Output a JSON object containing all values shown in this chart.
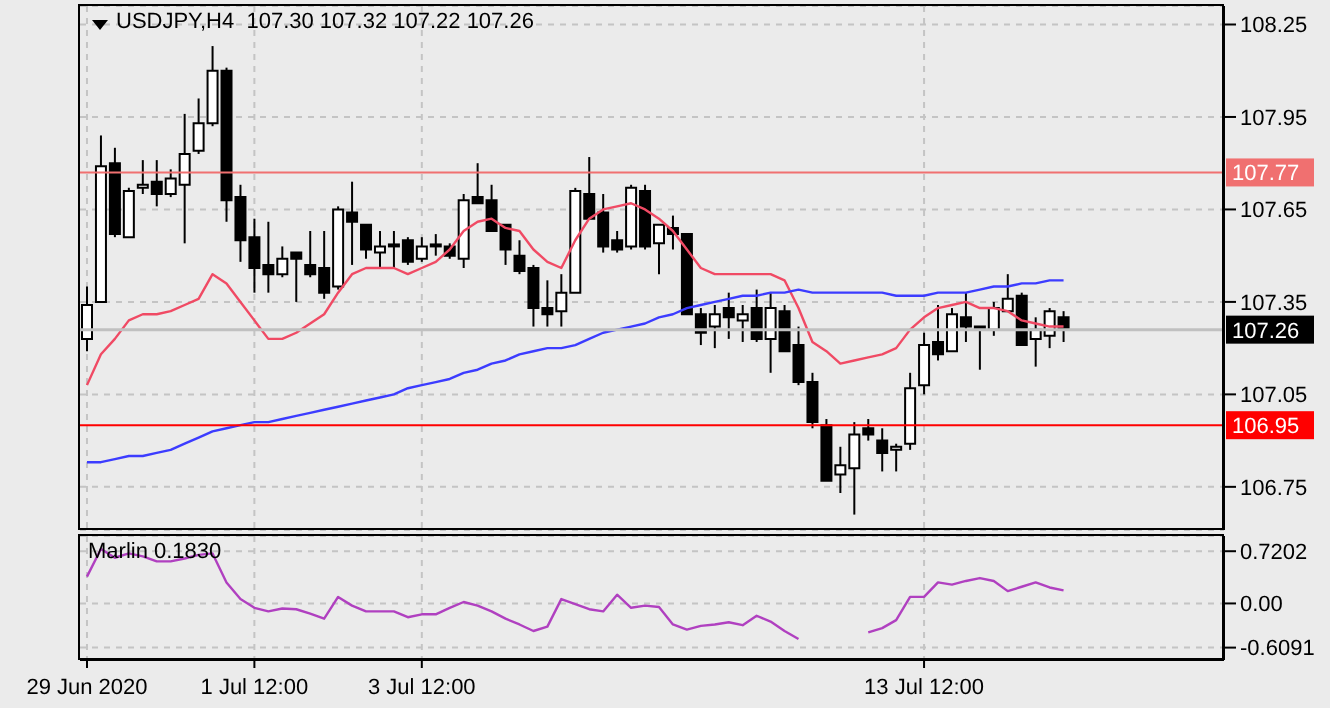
{
  "chart_data": [
    {
      "type": "candlestick",
      "title": "USDJPY,H4  107.30 107.32 107.22 107.26",
      "categories": [
        null,
        null,
        null,
        null,
        null,
        null,
        null,
        null,
        null,
        null,
        null,
        null,
        null,
        null,
        null,
        null,
        null,
        null,
        null,
        null,
        null,
        null,
        null,
        null,
        null,
        null,
        null,
        null,
        null,
        null,
        null,
        null,
        null,
        null,
        null,
        null,
        null,
        null,
        null,
        null,
        null,
        null,
        null,
        null,
        null,
        null,
        null,
        null,
        null,
        null,
        null,
        null,
        null,
        null,
        null,
        null,
        null,
        null,
        null,
        null,
        null,
        null,
        null,
        null,
        null,
        null,
        null,
        null,
        null,
        null,
        null,
        null,
        null,
        null,
        null,
        null,
        null,
        null,
        null,
        null,
        null,
        null
      ],
      "ohlc": [
        [
          107.23,
          107.4,
          107.19,
          107.34
        ],
        [
          107.35,
          107.89,
          107.35,
          107.79
        ],
        [
          107.8,
          107.85,
          107.56,
          107.57
        ],
        [
          107.56,
          107.72,
          107.56,
          107.71
        ],
        [
          107.72,
          107.81,
          107.7,
          107.73
        ],
        [
          107.74,
          107.81,
          107.66,
          107.7
        ],
        [
          107.7,
          107.78,
          107.69,
          107.75
        ],
        [
          107.73,
          107.96,
          107.54,
          107.83
        ],
        [
          107.84,
          108.01,
          107.83,
          107.93
        ],
        [
          107.93,
          108.18,
          107.92,
          108.1
        ],
        [
          108.1,
          108.11,
          107.61,
          107.68
        ],
        [
          107.69,
          107.73,
          107.48,
          107.55
        ],
        [
          107.56,
          107.62,
          107.38,
          107.46
        ],
        [
          107.47,
          107.61,
          107.38,
          107.44
        ],
        [
          107.44,
          107.53,
          107.43,
          107.49
        ],
        [
          107.51,
          107.51,
          107.35,
          107.49
        ],
        [
          107.47,
          107.58,
          107.43,
          107.44
        ],
        [
          107.46,
          107.58,
          107.36,
          107.38
        ],
        [
          107.4,
          107.66,
          107.39,
          107.65
        ],
        [
          107.64,
          107.74,
          107.47,
          107.61
        ],
        [
          107.6,
          107.6,
          107.49,
          107.52
        ],
        [
          107.51,
          107.58,
          107.46,
          107.53
        ],
        [
          107.53,
          107.58,
          107.46,
          107.53
        ],
        [
          107.55,
          107.56,
          107.47,
          107.48
        ],
        [
          107.49,
          107.56,
          107.48,
          107.53
        ],
        [
          107.53,
          107.57,
          107.5,
          107.53
        ],
        [
          107.53,
          107.54,
          107.49,
          107.5
        ],
        [
          107.49,
          107.7,
          107.46,
          107.68
        ],
        [
          107.69,
          107.8,
          107.67,
          107.67
        ],
        [
          107.68,
          107.73,
          107.58,
          107.58
        ],
        [
          107.6,
          107.6,
          107.47,
          107.52
        ],
        [
          107.5,
          107.55,
          107.44,
          107.45
        ],
        [
          107.46,
          107.47,
          107.27,
          107.33
        ],
        [
          107.33,
          107.42,
          107.27,
          107.31
        ],
        [
          107.32,
          107.44,
          107.27,
          107.38
        ],
        [
          107.38,
          107.72,
          107.38,
          107.71
        ],
        [
          107.7,
          107.82,
          107.62,
          107.62
        ],
        [
          107.64,
          107.7,
          107.51,
          107.53
        ],
        [
          107.55,
          107.58,
          107.51,
          107.52
        ],
        [
          107.53,
          107.73,
          107.52,
          107.72
        ],
        [
          107.71,
          107.73,
          107.52,
          107.53
        ],
        [
          107.54,
          107.6,
          107.44,
          107.6
        ],
        [
          107.59,
          107.63,
          107.52,
          107.57
        ],
        [
          107.57,
          107.57,
          107.31,
          107.31
        ],
        [
          107.31,
          107.33,
          107.21,
          107.25
        ],
        [
          107.27,
          107.34,
          107.2,
          107.31
        ],
        [
          107.33,
          107.38,
          107.23,
          107.3
        ],
        [
          107.29,
          107.34,
          107.22,
          107.31
        ],
        [
          107.33,
          107.39,
          107.22,
          107.23
        ],
        [
          107.23,
          107.38,
          107.12,
          107.33
        ],
        [
          107.32,
          107.34,
          107.19,
          107.19
        ],
        [
          107.21,
          107.27,
          107.08,
          107.09
        ],
        [
          107.09,
          107.12,
          106.94,
          106.96
        ],
        [
          106.95,
          106.97,
          106.77,
          106.77
        ],
        [
          106.79,
          106.88,
          106.73,
          106.82
        ],
        [
          106.81,
          106.96,
          106.66,
          106.92
        ],
        [
          106.94,
          106.97,
          106.9,
          106.92
        ],
        [
          106.9,
          106.94,
          106.8,
          106.86
        ],
        [
          106.87,
          106.89,
          106.8,
          106.88
        ],
        [
          106.89,
          107.12,
          106.87,
          107.07
        ],
        [
          107.08,
          107.25,
          107.05,
          107.21
        ],
        [
          107.22,
          107.34,
          107.16,
          107.18
        ],
        [
          107.19,
          107.33,
          107.19,
          107.31
        ],
        [
          107.3,
          107.38,
          107.22,
          107.27
        ],
        [
          107.27,
          107.27,
          107.13,
          107.26
        ],
        [
          107.26,
          107.35,
          107.24,
          107.33
        ],
        [
          107.32,
          107.44,
          107.32,
          107.36
        ],
        [
          107.37,
          107.38,
          107.21,
          107.21
        ],
        [
          107.23,
          107.3,
          107.14,
          107.26
        ],
        [
          107.24,
          107.33,
          107.2,
          107.32
        ],
        [
          107.3,
          107.32,
          107.22,
          107.26
        ],
        null,
        null,
        null,
        null,
        null,
        null,
        null,
        null,
        null,
        null,
        null
      ],
      "series": [
        {
          "type": "line",
          "color": "#f04a64",
          "values": [
            107.08,
            107.18,
            107.23,
            107.29,
            107.31,
            107.31,
            107.32,
            107.34,
            107.36,
            107.44,
            107.41,
            107.35,
            107.29,
            107.23,
            107.23,
            107.25,
            107.28,
            107.31,
            107.38,
            107.44,
            107.46,
            107.46,
            107.46,
            107.44,
            107.46,
            107.48,
            107.52,
            107.58,
            107.61,
            107.62,
            107.59,
            107.58,
            107.52,
            107.48,
            107.46,
            107.55,
            107.62,
            107.65,
            107.66,
            107.67,
            107.65,
            107.62,
            107.58,
            107.52,
            107.46,
            107.44,
            107.44,
            107.44,
            107.44,
            107.44,
            107.42,
            107.33,
            107.22,
            107.19,
            107.15,
            107.16,
            107.17,
            107.18,
            107.2,
            107.26,
            107.3,
            107.33,
            107.34,
            107.35,
            107.33,
            107.33,
            107.32,
            107.29,
            107.28,
            107.27,
            107.27,
            null,
            null,
            null,
            null,
            null,
            null,
            null,
            null,
            null,
            null,
            null
          ]
        },
        {
          "type": "line",
          "color": "#3c3cff",
          "values": [
            106.83,
            106.83,
            106.84,
            106.85,
            106.85,
            106.86,
            106.87,
            106.89,
            106.91,
            106.93,
            106.94,
            106.95,
            106.96,
            106.96,
            106.97,
            106.98,
            106.99,
            107.0,
            107.01,
            107.02,
            107.03,
            107.04,
            107.05,
            107.07,
            107.08,
            107.09,
            107.1,
            107.12,
            107.13,
            107.15,
            107.16,
            107.18,
            107.19,
            107.2,
            107.2,
            107.21,
            107.23,
            107.25,
            107.26,
            107.27,
            107.28,
            107.3,
            107.31,
            107.33,
            107.34,
            107.35,
            107.36,
            107.37,
            107.37,
            107.38,
            107.38,
            107.39,
            107.38,
            107.38,
            107.38,
            107.38,
            107.38,
            107.38,
            107.37,
            107.37,
            107.37,
            107.38,
            107.38,
            107.38,
            107.39,
            107.4,
            107.4,
            107.41,
            107.41,
            107.42,
            107.42,
            null,
            null,
            null,
            null,
            null,
            null,
            null,
            null,
            null,
            null,
            null
          ]
        }
      ],
      "ylim": [
        106.61,
        108.31
      ],
      "yticks": [
        108.25,
        107.95,
        107.65,
        107.35,
        107.05,
        106.75
      ],
      "ref_lines": [
        {
          "axis": "y",
          "value": 107.77,
          "label": "107.77",
          "color": "#f07070"
        },
        {
          "axis": "y",
          "value": 106.95,
          "label": "106.95",
          "color": "#ff0000"
        },
        {
          "axis": "y",
          "value": 107.26,
          "label": "107.26",
          "color": "#c0c0c0"
        }
      ],
      "grid": true,
      "tick_labels": "y"
    },
    {
      "type": "line",
      "title": "Marlin 0.1830",
      "categories": [
        "29 Jun 2020",
        null,
        null,
        null,
        null,
        null,
        null,
        null,
        null,
        null,
        null,
        null,
        "1 Jul 12:00",
        null,
        null,
        null,
        null,
        null,
        null,
        null,
        null,
        null,
        null,
        null,
        "3 Jul 12:00",
        null,
        null,
        null,
        null,
        null,
        null,
        null,
        null,
        null,
        null,
        null,
        null,
        null,
        null,
        null,
        null,
        null,
        null,
        null,
        null,
        null,
        null,
        null,
        null,
        null,
        null,
        null,
        null,
        null,
        null,
        null,
        null,
        null,
        null,
        null,
        "13 Jul 12:00",
        null,
        null,
        null,
        null,
        null,
        null,
        null,
        null,
        null,
        null,
        null,
        null,
        null,
        null,
        null,
        null,
        null,
        null,
        null,
        null,
        null
      ],
      "color": "#b040c0",
      "values": [
        0.37,
        0.75,
        0.63,
        0.69,
        0.65,
        0.58,
        0.58,
        0.62,
        0.67,
        0.69,
        0.29,
        0.06,
        -0.06,
        -0.11,
        -0.07,
        -0.08,
        -0.14,
        -0.21,
        0.09,
        -0.03,
        -0.11,
        -0.11,
        -0.11,
        -0.19,
        -0.15,
        -0.15,
        -0.06,
        0.02,
        -0.03,
        -0.11,
        -0.21,
        -0.29,
        -0.38,
        -0.32,
        0.06,
        -0.01,
        -0.08,
        -0.11,
        0.12,
        -0.06,
        -0.03,
        -0.05,
        -0.29,
        -0.36,
        -0.31,
        -0.29,
        -0.26,
        -0.3,
        -0.17,
        -0.25,
        -0.38,
        -0.49,
        null,
        null,
        null,
        null,
        -0.4,
        -0.34,
        -0.23,
        0.09,
        0.09,
        0.29,
        0.26,
        0.31,
        0.35,
        0.31,
        0.17,
        0.23,
        0.29,
        0.22,
        0.18,
        null,
        null,
        null,
        null,
        null,
        null,
        null,
        null,
        null,
        null,
        null
      ],
      "ylim": [
        -0.78,
        0.93
      ],
      "yticks": [
        0.7202,
        {
          "value": 0,
          "label": "0.00"
        },
        -0.6091
      ],
      "grid": true
    }
  ]
}
